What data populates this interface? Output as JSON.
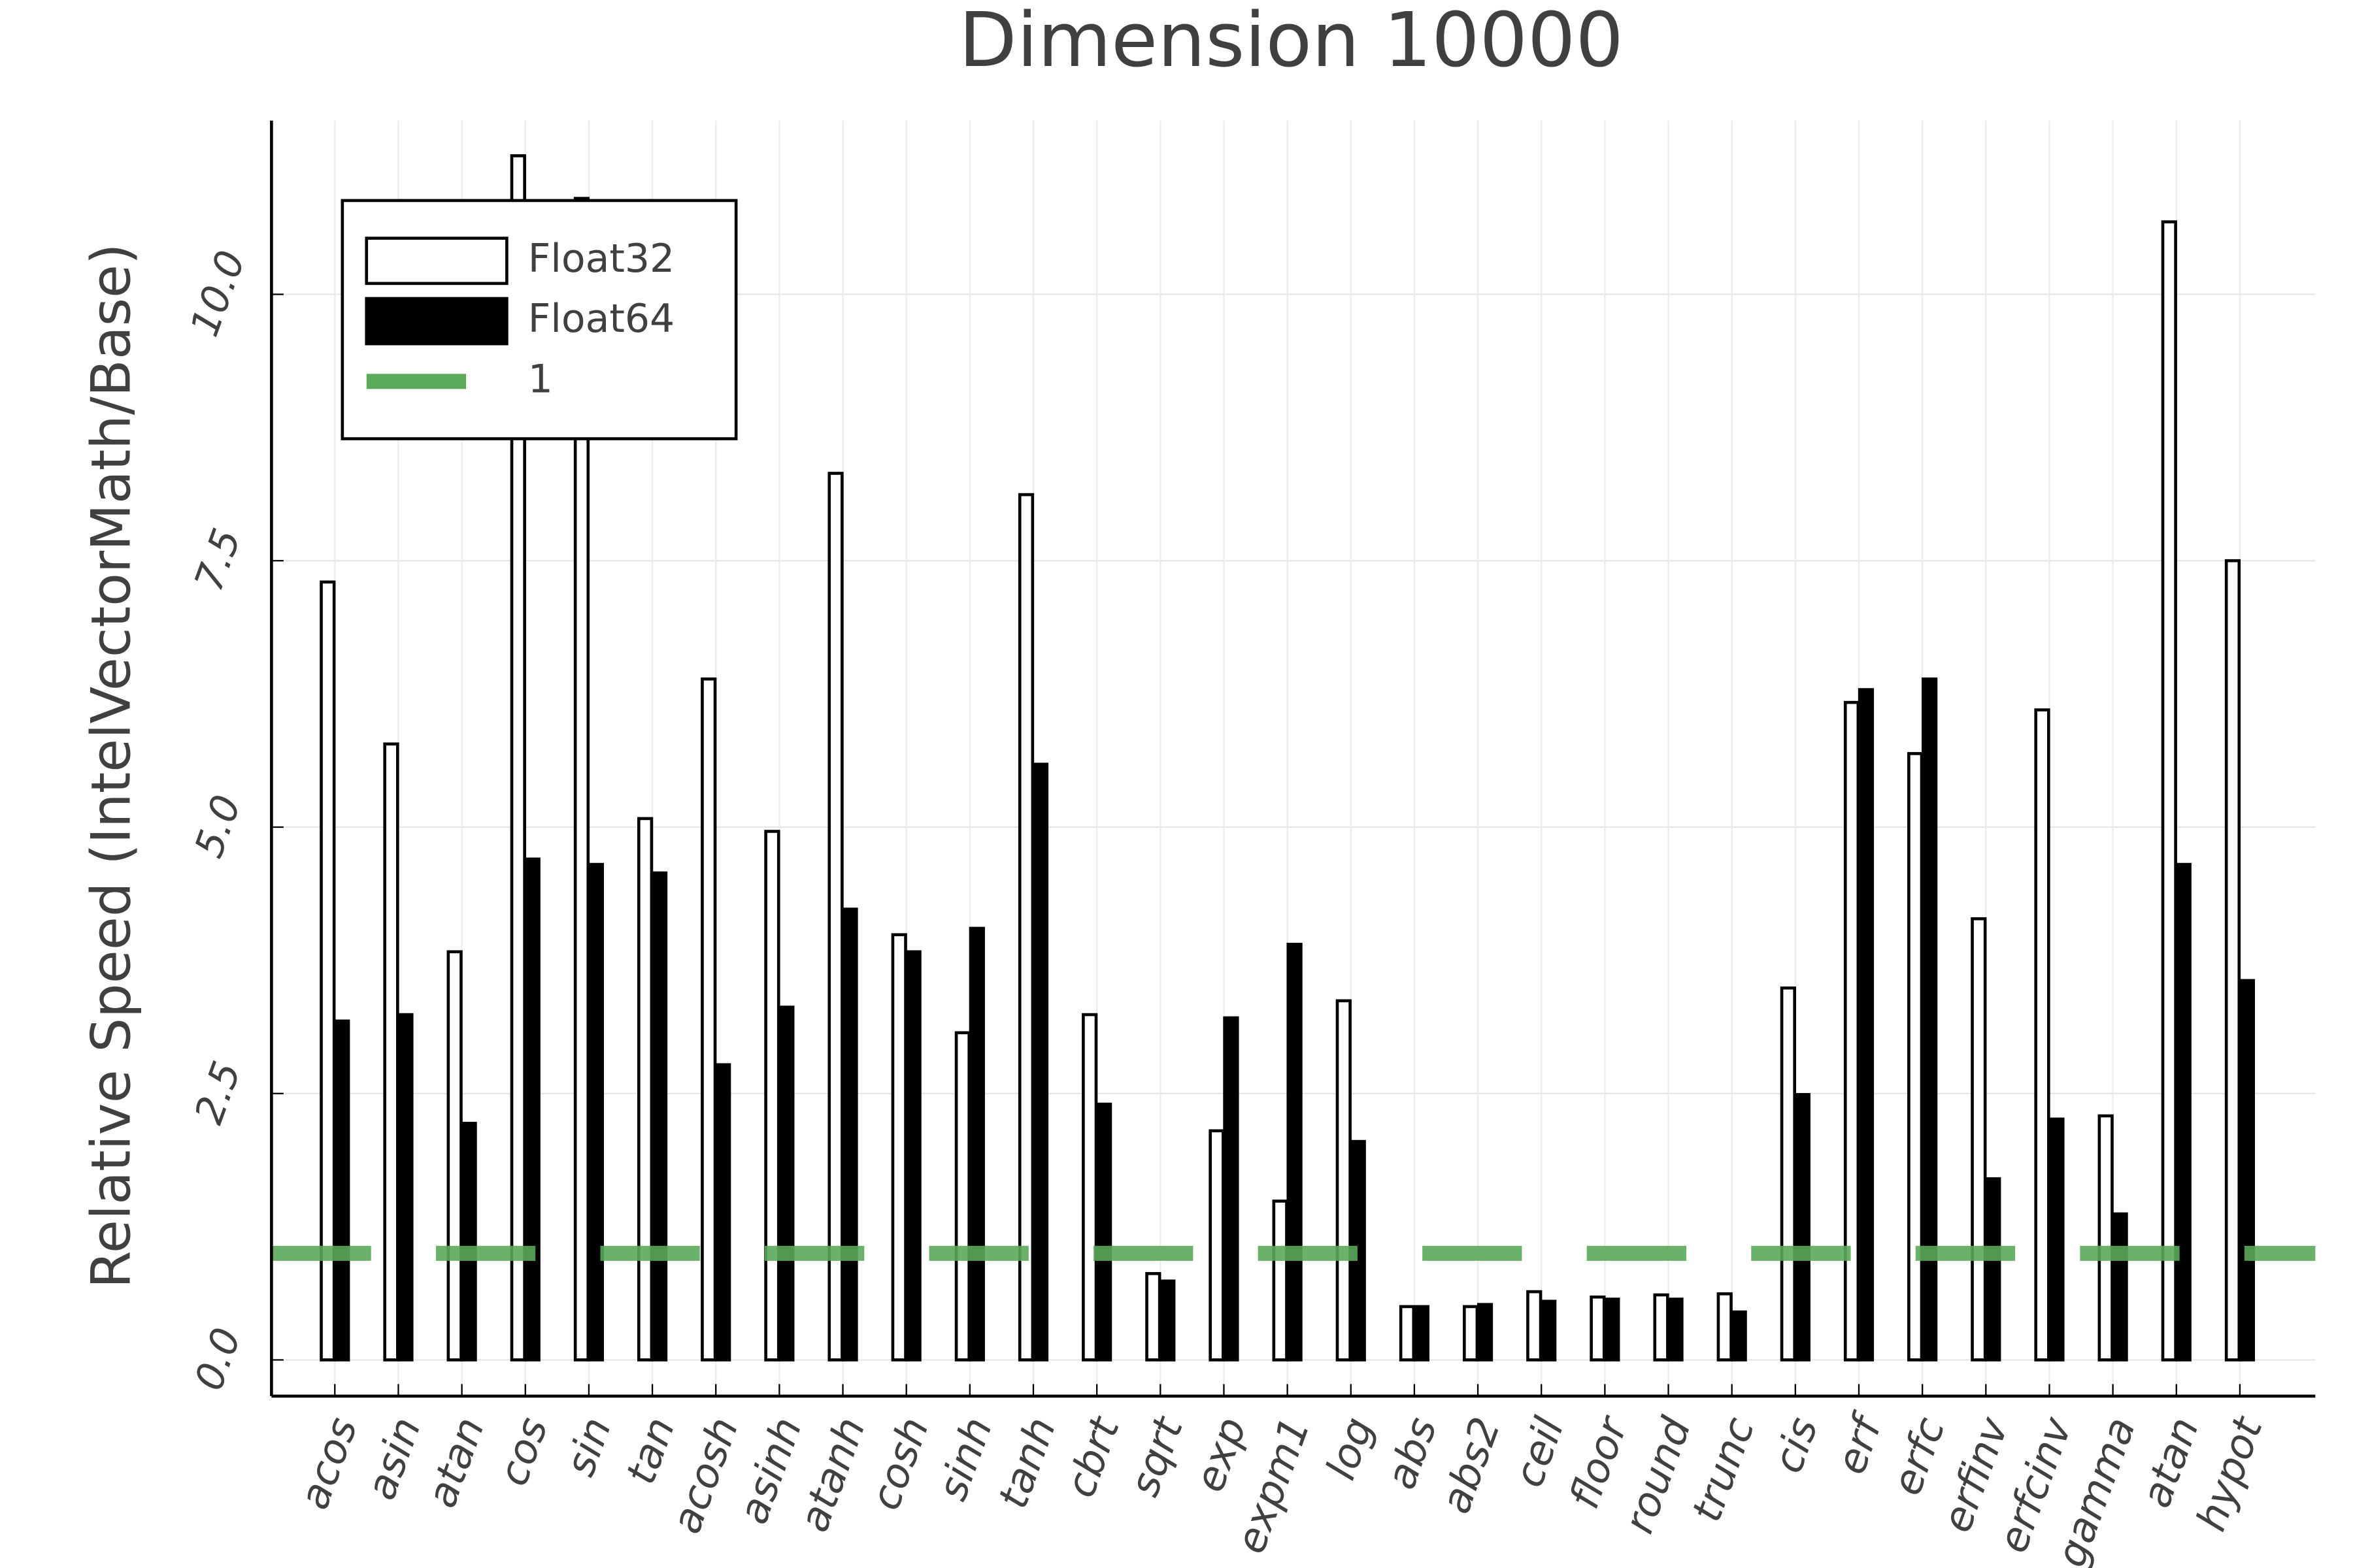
{
  "chart_data": {
    "type": "bar",
    "title": "Dimension 10000",
    "y_label": "Relative Speed (IntelVectorMath/Base)",
    "categories": [
      "acos",
      "asin",
      "atan",
      "cos",
      "sin",
      "tan",
      "acosh",
      "asinh",
      "atanh",
      "cosh",
      "sinh",
      "tanh",
      "cbrt",
      "sqrt",
      "exp",
      "expm1",
      "log",
      "abs",
      "abs2",
      "ceil",
      "floor",
      "round",
      "trunc",
      "cis",
      "erf",
      "erfc",
      "erfinv",
      "erfcinv",
      "gamma",
      "atan",
      "hypot"
    ],
    "series": [
      {
        "name": "Float32",
        "color": "#ffffff",
        "values": [
          7.3,
          5.78,
          3.83,
          11.3,
          10.9,
          5.08,
          6.39,
          4.96,
          8.32,
          3.99,
          3.07,
          8.12,
          3.24,
          0.81,
          2.15,
          1.49,
          3.37,
          0.5,
          0.5,
          0.64,
          0.59,
          0.61,
          0.62,
          3.49,
          6.17,
          5.69,
          4.14,
          6.1,
          2.29,
          10.68,
          7.5
        ]
      },
      {
        "name": "Float64",
        "color": "#000000",
        "values": [
          3.18,
          3.24,
          2.22,
          4.7,
          4.65,
          4.57,
          2.77,
          3.31,
          4.23,
          3.83,
          4.05,
          5.59,
          2.4,
          0.74,
          3.21,
          3.9,
          2.05,
          0.5,
          0.52,
          0.55,
          0.57,
          0.57,
          0.45,
          2.49,
          6.29,
          6.39,
          1.7,
          2.26,
          1.37,
          4.65,
          3.56
        ]
      }
    ],
    "reference_line": {
      "name": "1",
      "value": 1,
      "color": "#5aaa5a"
    },
    "ylim": [
      -0.34,
      11.63
    ],
    "yticks": [
      {
        "value": 0,
        "label": "0.0"
      },
      2.5,
      {
        "value": 5,
        "label": "5.0"
      },
      7.5,
      {
        "value": 10,
        "label": "10.0"
      }
    ],
    "grid": true,
    "legend": "top-left"
  }
}
